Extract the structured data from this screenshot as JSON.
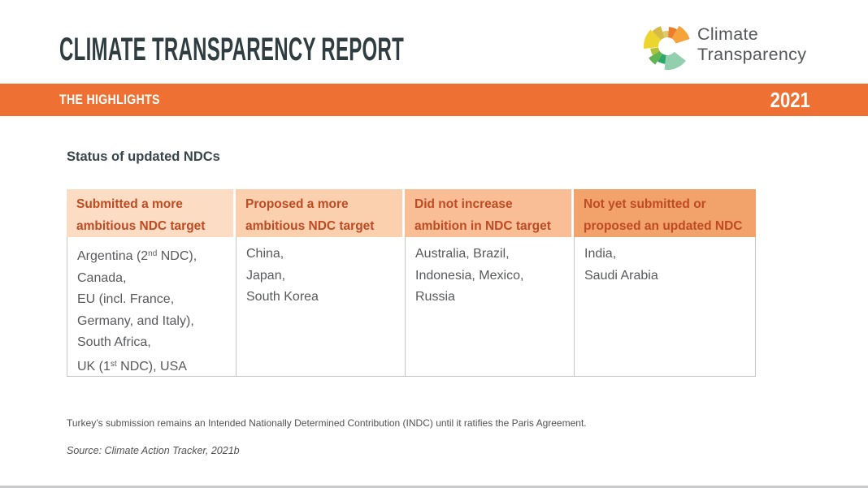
{
  "header": {
    "title": "CLIMATE TRANSPARENCY REPORT",
    "section": "THE HIGHLIGHTS",
    "year": "2021",
    "accent_color": "#EE7133",
    "logo": {
      "line1": "Climate",
      "line2": "Transparency"
    }
  },
  "main": {
    "heading": "Status of updated NDCs",
    "table": {
      "header_text_color": "#BE4B23",
      "columns": [
        {
          "header_lines": [
            "Submitted a more",
            "ambitious NDC target"
          ],
          "header_bg": "#FCDCC2",
          "lines": [
            "Argentina (2{nd} NDC),",
            "Canada,",
            "EU (incl. France,",
            "Germany, and Italy),",
            "South Africa,",
            "UK (1{st} NDC), USA"
          ]
        },
        {
          "header_lines": [
            "Proposed a more",
            "ambitious NDC target"
          ],
          "header_bg": "#FBD0AF",
          "lines": [
            "China,",
            "Japan,",
            "South Korea"
          ]
        },
        {
          "header_lines": [
            "Did not increase",
            "ambition in NDC target"
          ],
          "header_bg": "#F9BE95",
          "lines": [
            "Australia, Brazil,",
            "Indonesia, Mexico,",
            "Russia"
          ]
        },
        {
          "header_lines": [
            "Not yet submitted or",
            "proposed an updated NDC"
          ],
          "header_bg": "#F2A26B",
          "lines": [
            "India,",
            "Saudi Arabia"
          ]
        }
      ]
    },
    "footnote": "Turkey’s submission remains an Intended Nationally Determined Contribution (INDC) until it ratifies the Paris Agreement.",
    "source": "Source: Climate Action Tracker, 2021b"
  }
}
